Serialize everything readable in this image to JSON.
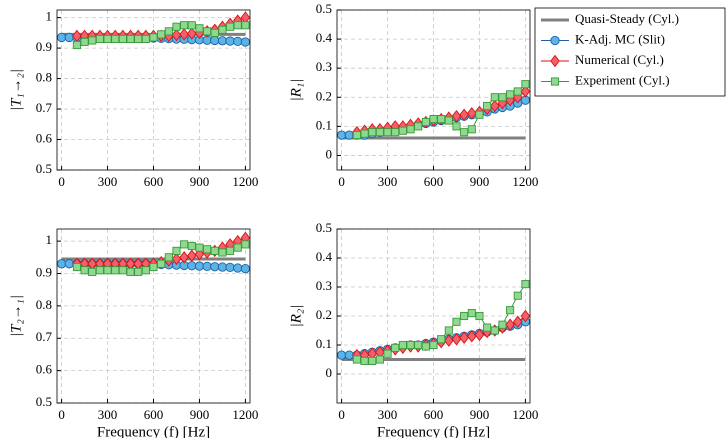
{
  "chart_data": [
    {
      "type": "line",
      "y_label": "|T₁→₂|",
      "legend": "outside-top-right",
      "grid": true,
      "xlim": [
        -30,
        1230
      ],
      "xticks": [
        0,
        300,
        600,
        900,
        1200
      ],
      "ylim": [
        0.5,
        1.025
      ],
      "yticks": [
        0.5,
        0.6,
        0.7,
        0.8,
        0.9,
        1
      ],
      "x": [
        0,
        50,
        100,
        150,
        200,
        250,
        300,
        350,
        400,
        450,
        500,
        550,
        600,
        650,
        700,
        750,
        800,
        850,
        900,
        950,
        1000,
        1050,
        1100,
        1150,
        1200
      ],
      "series": [
        {
          "name": "Quasi-Steady (Cyl.)",
          "color": "#808080",
          "values": [
            0.945,
            0.945,
            0.945,
            0.945,
            0.945,
            0.945,
            0.945,
            0.945,
            0.945,
            0.945,
            0.945,
            0.945,
            0.945,
            0.945,
            0.945,
            0.945,
            0.945,
            0.945,
            0.945,
            0.945,
            0.945,
            0.945,
            0.945,
            0.945,
            0.945
          ]
        },
        {
          "name": "K-Adj. MC (Slit)",
          "color": "#1f5fa0",
          "fill": "#5ab4e6",
          "marker": "circle",
          "values": [
            0.935,
            0.935,
            0.935,
            0.935,
            0.935,
            0.935,
            0.935,
            0.935,
            0.935,
            0.935,
            0.935,
            0.934,
            0.933,
            0.932,
            0.931,
            0.93,
            0.929,
            0.928,
            0.927,
            0.926,
            0.925,
            0.924,
            0.923,
            0.922,
            0.92
          ]
        },
        {
          "name": "Numerical (Cyl.)",
          "color": "#dd1111",
          "fill": "#f2606a",
          "marker": "diamond",
          "values": [
            null,
            null,
            0.94,
            0.94,
            0.94,
            0.94,
            0.94,
            0.94,
            0.94,
            0.94,
            0.94,
            0.94,
            0.94,
            0.94,
            0.94,
            0.943,
            0.945,
            0.948,
            0.95,
            0.955,
            0.96,
            0.97,
            0.98,
            0.99,
            1.0
          ]
        },
        {
          "name": "Experiment (Cyl.)",
          "color": "#3a9a3a",
          "fill": "#8fd88f",
          "marker": "square",
          "values": [
            null,
            null,
            0.91,
            0.92,
            0.925,
            0.93,
            0.93,
            0.93,
            0.93,
            0.93,
            0.93,
            0.93,
            0.935,
            0.945,
            0.955,
            0.97,
            0.975,
            0.975,
            0.965,
            0.955,
            0.95,
            0.96,
            0.97,
            0.975,
            0.975
          ]
        }
      ]
    },
    {
      "type": "line",
      "y_label": "|R₁|",
      "grid": true,
      "xlim": [
        -30,
        1230
      ],
      "xticks": [
        0,
        300,
        600,
        900,
        1200
      ],
      "ylim": [
        -0.05,
        0.5
      ],
      "yticks": [
        0,
        0.1,
        0.2,
        0.3,
        0.4,
        0.5
      ],
      "x": [
        0,
        50,
        100,
        150,
        200,
        250,
        300,
        350,
        400,
        450,
        500,
        550,
        600,
        650,
        700,
        750,
        800,
        850,
        900,
        950,
        1000,
        1050,
        1100,
        1150,
        1200
      ],
      "series": [
        {
          "name": "Quasi-Steady (Cyl.)",
          "color": "#808080",
          "values": [
            0.06,
            0.06,
            0.06,
            0.06,
            0.06,
            0.06,
            0.06,
            0.06,
            0.06,
            0.06,
            0.06,
            0.06,
            0.06,
            0.06,
            0.06,
            0.06,
            0.06,
            0.06,
            0.06,
            0.06,
            0.06,
            0.06,
            0.06,
            0.06,
            0.06
          ]
        },
        {
          "name": "K-Adj. MC (Slit)",
          "color": "#1f5fa0",
          "fill": "#5ab4e6",
          "marker": "circle",
          "values": [
            0.07,
            0.07,
            0.07,
            0.07,
            0.075,
            0.08,
            0.085,
            0.09,
            0.095,
            0.1,
            0.105,
            0.11,
            0.115,
            0.12,
            0.125,
            0.13,
            0.135,
            0.14,
            0.145,
            0.15,
            0.16,
            0.165,
            0.17,
            0.18,
            0.19
          ]
        },
        {
          "name": "Numerical (Cyl.)",
          "color": "#dd1111",
          "fill": "#f2606a",
          "marker": "diamond",
          "values": [
            null,
            null,
            0.08,
            0.085,
            0.09,
            0.09,
            0.095,
            0.1,
            0.1,
            0.105,
            0.11,
            0.115,
            0.12,
            0.125,
            0.13,
            0.135,
            0.14,
            0.145,
            0.15,
            0.16,
            0.17,
            0.18,
            0.19,
            0.2,
            0.22
          ]
        },
        {
          "name": "Experiment (Cyl.)",
          "color": "#3a9a3a",
          "fill": "#8fd88f",
          "marker": "square",
          "values": [
            null,
            null,
            0.07,
            0.075,
            0.08,
            0.08,
            0.08,
            0.08,
            0.085,
            0.09,
            0.1,
            0.115,
            0.125,
            0.125,
            0.12,
            0.1,
            0.08,
            0.09,
            0.14,
            0.17,
            0.2,
            0.2,
            0.21,
            0.22,
            0.245
          ]
        }
      ]
    },
    {
      "type": "line",
      "y_label": "|T₂→₁|",
      "x_label": "Frequency (f) [Hz]",
      "grid": true,
      "xlim": [
        -30,
        1230
      ],
      "xticks": [
        0,
        300,
        600,
        900,
        1200
      ],
      "ylim": [
        0.5,
        1.0375
      ],
      "yticks": [
        0.5,
        0.6,
        0.7,
        0.8,
        0.9,
        1
      ],
      "x": [
        0,
        50,
        100,
        150,
        200,
        250,
        300,
        350,
        400,
        450,
        500,
        550,
        600,
        650,
        700,
        750,
        800,
        850,
        900,
        950,
        1000,
        1050,
        1100,
        1150,
        1200
      ],
      "series": [
        {
          "name": "Quasi-Steady (Cyl.)",
          "color": "#808080",
          "values": [
            0.945,
            0.945,
            0.945,
            0.945,
            0.945,
            0.945,
            0.945,
            0.945,
            0.945,
            0.945,
            0.945,
            0.945,
            0.945,
            0.945,
            0.945,
            0.945,
            0.945,
            0.945,
            0.945,
            0.945,
            0.945,
            0.945,
            0.945,
            0.945,
            0.945
          ]
        },
        {
          "name": "K-Adj. MC (Slit)",
          "color": "#1f5fa0",
          "fill": "#5ab4e6",
          "marker": "circle",
          "values": [
            0.93,
            0.93,
            0.93,
            0.93,
            0.93,
            0.93,
            0.93,
            0.93,
            0.93,
            0.93,
            0.93,
            0.93,
            0.929,
            0.928,
            0.927,
            0.926,
            0.925,
            0.924,
            0.923,
            0.922,
            0.921,
            0.92,
            0.919,
            0.917,
            0.915
          ]
        },
        {
          "name": "Numerical (Cyl.)",
          "color": "#dd1111",
          "fill": "#f2606a",
          "marker": "diamond",
          "values": [
            null,
            null,
            0.93,
            0.93,
            0.93,
            0.93,
            0.93,
            0.93,
            0.93,
            0.93,
            0.93,
            0.93,
            0.93,
            0.935,
            0.94,
            0.945,
            0.95,
            0.955,
            0.96,
            0.965,
            0.97,
            0.98,
            0.99,
            1.0,
            1.01
          ]
        },
        {
          "name": "Experiment (Cyl.)",
          "color": "#3a9a3a",
          "fill": "#8fd88f",
          "marker": "square",
          "values": [
            null,
            null,
            0.92,
            0.91,
            0.905,
            0.91,
            0.91,
            0.91,
            0.91,
            0.905,
            0.905,
            0.91,
            0.92,
            0.93,
            0.95,
            0.97,
            0.99,
            0.985,
            0.98,
            0.975,
            0.97,
            0.965,
            0.97,
            0.98,
            0.99
          ]
        }
      ]
    },
    {
      "type": "line",
      "y_label": "|R₂|",
      "x_label": "Frequency (f) [Hz]",
      "grid": true,
      "xlim": [
        -30,
        1230
      ],
      "xticks": [
        0,
        300,
        600,
        900,
        1200
      ],
      "ylim": [
        -0.1,
        0.5
      ],
      "yticks": [
        0,
        0.1,
        0.2,
        0.3,
        0.4,
        0.5
      ],
      "x": [
        0,
        50,
        100,
        150,
        200,
        250,
        300,
        350,
        400,
        450,
        500,
        550,
        600,
        650,
        700,
        750,
        800,
        850,
        900,
        950,
        1000,
        1050,
        1100,
        1150,
        1200
      ],
      "series": [
        {
          "name": "Quasi-Steady (Cyl.)",
          "color": "#808080",
          "values": [
            0.05,
            0.05,
            0.05,
            0.05,
            0.05,
            0.05,
            0.05,
            0.05,
            0.05,
            0.05,
            0.05,
            0.05,
            0.05,
            0.05,
            0.05,
            0.05,
            0.05,
            0.05,
            0.05,
            0.05,
            0.05,
            0.05,
            0.05,
            0.05,
            0.05
          ]
        },
        {
          "name": "K-Adj. MC (Slit)",
          "color": "#1f5fa0",
          "fill": "#5ab4e6",
          "marker": "circle",
          "values": [
            0.065,
            0.065,
            0.065,
            0.07,
            0.075,
            0.08,
            0.085,
            0.09,
            0.095,
            0.1,
            0.1,
            0.105,
            0.11,
            0.115,
            0.12,
            0.125,
            0.13,
            0.135,
            0.14,
            0.145,
            0.15,
            0.16,
            0.165,
            0.17,
            0.18
          ]
        },
        {
          "name": "Numerical (Cyl.)",
          "color": "#dd1111",
          "fill": "#f2606a",
          "marker": "diamond",
          "values": [
            null,
            null,
            0.065,
            0.065,
            0.07,
            0.075,
            0.08,
            0.085,
            0.09,
            0.095,
            0.095,
            0.1,
            0.105,
            0.11,
            0.115,
            0.12,
            0.125,
            0.13,
            0.135,
            0.145,
            0.15,
            0.16,
            0.17,
            0.18,
            0.2
          ]
        },
        {
          "name": "Experiment (Cyl.)",
          "color": "#3a9a3a",
          "fill": "#8fd88f",
          "marker": "square",
          "values": [
            null,
            null,
            0.05,
            0.045,
            0.045,
            0.05,
            0.07,
            0.09,
            0.1,
            0.1,
            0.1,
            0.095,
            0.1,
            0.12,
            0.15,
            0.18,
            0.2,
            0.21,
            0.2,
            0.16,
            0.15,
            0.17,
            0.22,
            0.27,
            0.31
          ]
        }
      ]
    }
  ]
}
